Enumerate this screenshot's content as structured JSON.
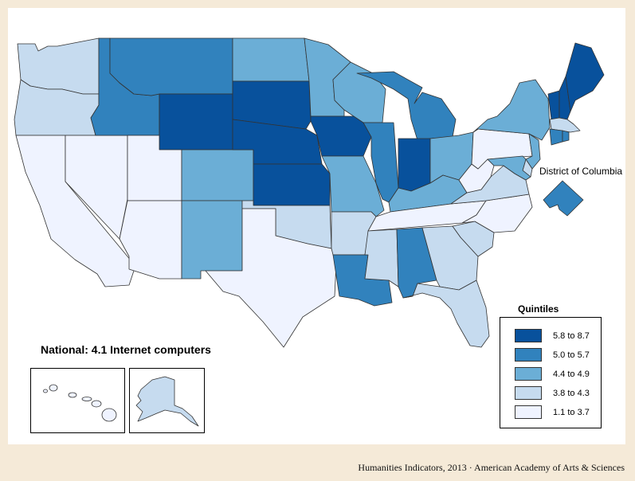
{
  "colors": {
    "q5": "#08519c",
    "q4": "#3182bd",
    "q3": "#6baed6",
    "q2": "#c6dbef",
    "q1": "#eff3ff",
    "background": "#f5ead8"
  },
  "national_label": "National: 4.1 Internet computers",
  "dc_label": "District of Columbia",
  "legend": {
    "title": "Quintiles",
    "items": [
      {
        "label": "5.8 to 8.7",
        "quintile": "q5"
      },
      {
        "label": "5.0 to 5.7",
        "quintile": "q4"
      },
      {
        "label": "4.4 to 4.9",
        "quintile": "q3"
      },
      {
        "label": "3.8 to 4.3",
        "quintile": "q2"
      },
      {
        "label": "1.1 to 3.7",
        "quintile": "q1"
      }
    ]
  },
  "state_quintiles": {
    "WA": "q2",
    "OR": "q2",
    "CA": "q1",
    "NV": "q1",
    "ID": "q4",
    "MT": "q4",
    "WY": "q5",
    "UT": "q1",
    "AZ": "q1",
    "CO": "q3",
    "NM": "q3",
    "ND": "q3",
    "SD": "q5",
    "NE": "q5",
    "KS": "q5",
    "OK": "q2",
    "TX": "q1",
    "MN": "q3",
    "IA": "q5",
    "MO": "q3",
    "AR": "q2",
    "LA": "q4",
    "WI": "q3",
    "IL": "q4",
    "MI": "q4",
    "IN": "q5",
    "OH": "q3",
    "KY": "q3",
    "TN": "q1",
    "MS": "q2",
    "AL": "q4",
    "GA": "q2",
    "FL": "q2",
    "SC": "q2",
    "NC": "q1",
    "VA": "q2",
    "WV": "q1",
    "PA": "q1",
    "NY": "q3",
    "VT": "q5",
    "NH": "q5",
    "ME": "q5",
    "MA": "q2",
    "CT": "q4",
    "RI": "q4",
    "NJ": "q3",
    "DE": "q2",
    "MD": "q3",
    "DC": "q4",
    "AK": "q2",
    "HI": "q1"
  },
  "footer": "Humanities Indicators, 2013 · American Academy of Arts & Sciences"
}
